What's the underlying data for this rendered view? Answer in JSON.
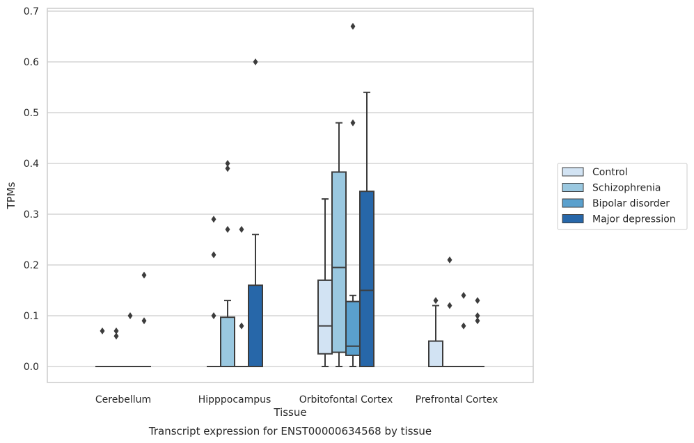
{
  "chart_data": {
    "type": "box",
    "title": "Transcript expression for ENST00000634568 by tissue",
    "xlabel": "Tissue",
    "ylabel": "TPMs",
    "ylim": [
      -0.03,
      0.705
    ],
    "yticks": [
      0.0,
      0.1,
      0.2,
      0.3,
      0.4,
      0.5,
      0.6,
      0.7
    ],
    "ytick_labels": [
      "0.0",
      "0.1",
      "0.2",
      "0.3",
      "0.4",
      "0.5",
      "0.6",
      "0.7"
    ],
    "categories": [
      "Cerebellum",
      "Hipppocampus",
      "Orbitofontal Cortex",
      "Prefrontal Cortex"
    ],
    "grid": "horizontal",
    "legend_position": "right",
    "series": [
      {
        "name": "Control",
        "color": "#d2e3f3",
        "boxes": [
          {
            "q1": 0.0,
            "median": 0.0,
            "q3": 0.0,
            "whislo": 0.0,
            "whishi": 0.0,
            "fliers": [
              0.07
            ]
          },
          {
            "q1": 0.0,
            "median": 0.0,
            "q3": 0.0,
            "whislo": 0.0,
            "whishi": 0.0,
            "fliers": [
              0.1,
              0.22,
              0.29
            ]
          },
          {
            "q1": 0.025,
            "median": 0.08,
            "q3": 0.17,
            "whislo": 0.0,
            "whishi": 0.33,
            "fliers": []
          },
          {
            "q1": 0.0,
            "median": 0.0,
            "q3": 0.05,
            "whislo": 0.0,
            "whishi": 0.12,
            "fliers": [
              0.13
            ]
          }
        ]
      },
      {
        "name": "Schizophrenia",
        "color": "#9ac8e0",
        "boxes": [
          {
            "q1": 0.0,
            "median": 0.0,
            "q3": 0.0,
            "whislo": 0.0,
            "whishi": 0.0,
            "fliers": [
              0.06,
              0.07
            ]
          },
          {
            "q1": 0.0,
            "median": 0.0,
            "q3": 0.097,
            "whislo": 0.0,
            "whishi": 0.13,
            "fliers": [
              0.27,
              0.39,
              0.4
            ]
          },
          {
            "q1": 0.028,
            "median": 0.195,
            "q3": 0.383,
            "whislo": 0.0,
            "whishi": 0.48,
            "fliers": []
          },
          {
            "q1": 0.0,
            "median": 0.0,
            "q3": 0.0,
            "whislo": 0.0,
            "whishi": 0.0,
            "fliers": [
              0.12,
              0.21
            ]
          }
        ]
      },
      {
        "name": "Bipolar disorder",
        "color": "#5aa0cd",
        "boxes": [
          {
            "q1": 0.0,
            "median": 0.0,
            "q3": 0.0,
            "whislo": 0.0,
            "whishi": 0.0,
            "fliers": [
              0.1
            ]
          },
          {
            "q1": 0.0,
            "median": 0.0,
            "q3": 0.0,
            "whislo": 0.0,
            "whishi": 0.0,
            "fliers": [
              0.08,
              0.27
            ]
          },
          {
            "q1": 0.022,
            "median": 0.04,
            "q3": 0.128,
            "whislo": 0.0,
            "whishi": 0.14,
            "fliers": [
              0.48,
              0.67
            ]
          },
          {
            "q1": 0.0,
            "median": 0.0,
            "q3": 0.0,
            "whislo": 0.0,
            "whishi": 0.0,
            "fliers": [
              0.08,
              0.14
            ]
          }
        ]
      },
      {
        "name": "Major depression",
        "color": "#2767a9",
        "boxes": [
          {
            "q1": 0.0,
            "median": 0.0,
            "q3": 0.0,
            "whislo": 0.0,
            "whishi": 0.0,
            "fliers": [
              0.09,
              0.18
            ]
          },
          {
            "q1": 0.0,
            "median": 0.0,
            "q3": 0.16,
            "whislo": 0.0,
            "whishi": 0.26,
            "fliers": [
              0.6
            ]
          },
          {
            "q1": 0.0,
            "median": 0.15,
            "q3": 0.345,
            "whislo": 0.0,
            "whishi": 0.54,
            "fliers": []
          },
          {
            "q1": 0.0,
            "median": 0.0,
            "q3": 0.0,
            "whislo": 0.0,
            "whishi": 0.0,
            "fliers": [
              0.09,
              0.1,
              0.13
            ]
          }
        ]
      }
    ]
  }
}
